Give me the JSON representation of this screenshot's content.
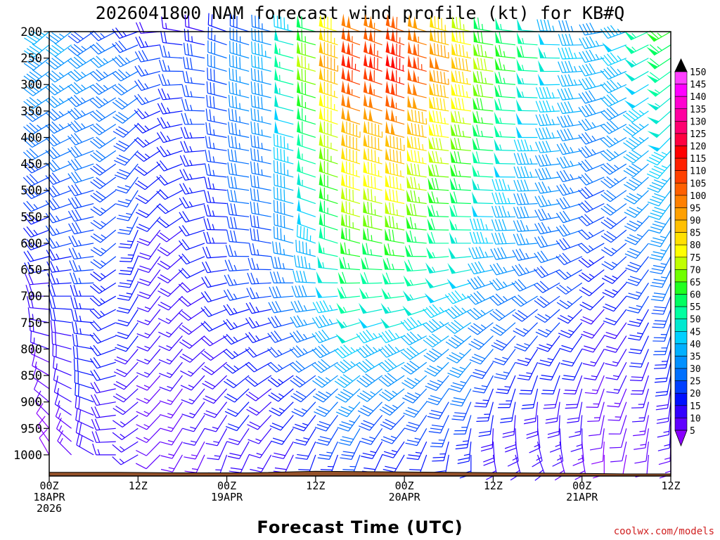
{
  "chart_data": {
    "type": "wind-barb-time-height",
    "title": "2026041800 NAM forecast wind profile (kt) for KB#Q",
    "xlabel": "Forecast Time (UTC)",
    "credit": "coolwx.com/models",
    "y_axis": {
      "unit": "hPa",
      "inverted": true,
      "range": [
        1040,
        200
      ],
      "ticks": [
        200,
        250,
        300,
        350,
        400,
        450,
        500,
        550,
        600,
        650,
        700,
        750,
        800,
        850,
        900,
        950,
        1000
      ],
      "tick_labels": [
        "200",
        "250",
        "300",
        "350",
        "400",
        "450",
        "500",
        "550",
        "600",
        "650",
        "700",
        "750",
        "800",
        "850",
        "900",
        "950",
        "1000"
      ]
    },
    "x_axis": {
      "unit": "hours since 2026-04-18 00Z",
      "range": [
        0,
        84
      ],
      "step_hours": 3,
      "ticks": [
        {
          "hour": 0,
          "lines": [
            "00Z",
            "18APR",
            "2026"
          ]
        },
        {
          "hour": 12,
          "lines": [
            "12Z"
          ]
        },
        {
          "hour": 24,
          "lines": [
            "00Z",
            "19APR"
          ]
        },
        {
          "hour": 36,
          "lines": [
            "12Z"
          ]
        },
        {
          "hour": 48,
          "lines": [
            "00Z",
            "20APR"
          ]
        },
        {
          "hour": 60,
          "lines": [
            "12Z"
          ]
        },
        {
          "hour": 72,
          "lines": [
            "00Z",
            "21APR"
          ]
        },
        {
          "hour": 84,
          "lines": [
            "12Z"
          ]
        }
      ]
    },
    "levels_hpa": [
      200,
      225,
      250,
      275,
      300,
      325,
      350,
      375,
      400,
      425,
      450,
      475,
      500,
      525,
      550,
      575,
      600,
      625,
      650,
      675,
      700,
      725,
      750,
      775,
      800,
      825,
      850,
      875,
      900,
      925,
      950,
      975,
      1000
    ],
    "surface_pressure": [
      {
        "hour": 0,
        "hpa": 1033
      },
      {
        "hour": 9,
        "hpa": 1033
      },
      {
        "hour": 18,
        "hpa": 1034
      },
      {
        "hour": 27,
        "hpa": 1034
      },
      {
        "hour": 36,
        "hpa": 1031
      },
      {
        "hour": 45,
        "hpa": 1032
      },
      {
        "hour": 54,
        "hpa": 1033
      },
      {
        "hour": 63,
        "hpa": 1034
      },
      {
        "hour": 72,
        "hpa": 1035
      },
      {
        "hour": 78,
        "hpa": 1036
      },
      {
        "hour": 84,
        "hpa": 1036
      }
    ],
    "colorbar": {
      "unit": "kt",
      "ticks": [
        5,
        10,
        15,
        20,
        25,
        30,
        35,
        40,
        45,
        50,
        55,
        60,
        65,
        70,
        75,
        80,
        85,
        90,
        95,
        100,
        105,
        110,
        115,
        120,
        125,
        130,
        135,
        140,
        145,
        150
      ],
      "colors": [
        "#8a00ff",
        "#6000ff",
        "#3300ff",
        "#0010ff",
        "#0040ff",
        "#0070ff",
        "#0090ff",
        "#00b0ff",
        "#00d0ff",
        "#00e8d0",
        "#00ffa0",
        "#00ff60",
        "#20ff20",
        "#70ff00",
        "#c0ff00",
        "#ffff00",
        "#ffe000",
        "#ffc000",
        "#ffa000",
        "#ff8000",
        "#ff6000",
        "#ff4000",
        "#ff2000",
        "#ff0000",
        "#ff0040",
        "#ff0070",
        "#ff00a0",
        "#ff00d0",
        "#ff00ff",
        "#ff40ff"
      ]
    },
    "wind_field_anchors": {
      "description_units": "direction in degrees (wind from), speed in kt",
      "columns": [
        {
          "hour": 0,
          "jet_level": 200,
          "top_speed": 45,
          "top_dir": 230,
          "low_speed": 10,
          "low_dir": 330,
          "vmid_dir": 250
        },
        {
          "hour": 6,
          "jet_level": 250,
          "top_speed": 38,
          "top_dir": 235,
          "low_speed": 18,
          "low_dir": 300,
          "vmid_dir": 260
        },
        {
          "hour": 12,
          "jet_level": 250,
          "top_speed": 32,
          "top_dir": 250,
          "low_speed": 14,
          "low_dir": 240,
          "vmid_dir": 200
        },
        {
          "hour": 18,
          "jet_level": 250,
          "top_speed": 28,
          "top_dir": 280,
          "low_speed": 14,
          "low_dir": 210,
          "vmid_dir": 230
        },
        {
          "hour": 24,
          "jet_level": 250,
          "top_speed": 30,
          "top_dir": 290,
          "low_speed": 15,
          "low_dir": 200,
          "vmid_dir": 270
        },
        {
          "hour": 30,
          "jet_level": 250,
          "top_speed": 45,
          "top_dir": 285,
          "low_speed": 18,
          "low_dir": 210,
          "vmid_dir": 280
        },
        {
          "hour": 36,
          "jet_level": 275,
          "top_speed": 75,
          "top_dir": 285,
          "low_speed": 20,
          "low_dir": 200,
          "vmid_dir": 290
        },
        {
          "hour": 42,
          "jet_level": 275,
          "top_speed": 115,
          "top_dir": 290,
          "low_speed": 25,
          "low_dir": 200,
          "vmid_dir": 285
        },
        {
          "hour": 48,
          "jet_level": 275,
          "top_speed": 125,
          "top_dir": 290,
          "low_speed": 22,
          "low_dir": 210,
          "vmid_dir": 280
        },
        {
          "hour": 54,
          "jet_level": 275,
          "top_speed": 100,
          "top_dir": 285,
          "low_speed": 20,
          "low_dir": 190,
          "vmid_dir": 270
        },
        {
          "hour": 60,
          "jet_level": 275,
          "top_speed": 80,
          "top_dir": 280,
          "low_speed": 18,
          "low_dir": 170,
          "vmid_dir": 270
        },
        {
          "hour": 66,
          "jet_level": 250,
          "top_speed": 60,
          "top_dir": 275,
          "low_speed": 15,
          "low_dir": 160,
          "vmid_dir": 265
        },
        {
          "hour": 72,
          "jet_level": 250,
          "top_speed": 45,
          "top_dir": 270,
          "low_speed": 12,
          "low_dir": 170,
          "vmid_dir": 250
        },
        {
          "hour": 78,
          "jet_level": 225,
          "top_speed": 50,
          "top_dir": 250,
          "low_speed": 10,
          "low_dir": 190,
          "vmid_dir": 230
        },
        {
          "hour": 84,
          "jet_level": 200,
          "top_speed": 65,
          "top_dir": 240,
          "low_speed": 12,
          "low_dir": 180,
          "vmid_dir": 210
        }
      ]
    }
  }
}
